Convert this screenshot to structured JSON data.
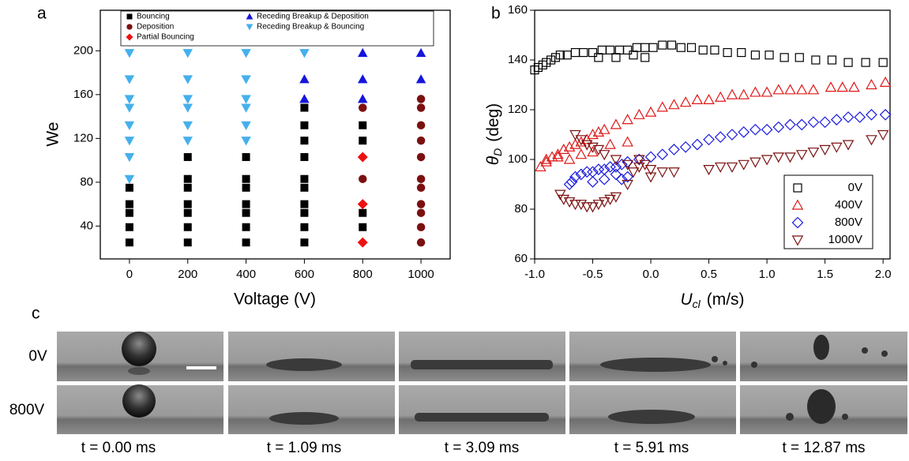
{
  "chart_data": [
    {
      "type": "scatter",
      "panel_label": "a",
      "xlabel": "Voltage (V)",
      "ylabel": "We",
      "xlim": [
        -100,
        1100
      ],
      "xticks": [
        0,
        200,
        400,
        600,
        800,
        1000
      ],
      "ylim": [
        10,
        237
      ],
      "yticks": [
        40,
        80,
        120,
        160,
        200
      ],
      "series": [
        {
          "name": "Bouncing",
          "color": "#000000",
          "marker": "square",
          "filled": true,
          "x": [
            0,
            0,
            0,
            0,
            0,
            200,
            200,
            200,
            200,
            200,
            200,
            200,
            400,
            400,
            400,
            400,
            400,
            400,
            400,
            600,
            600,
            600,
            600,
            600,
            600,
            600,
            600,
            600,
            600,
            800,
            800,
            800,
            800
          ],
          "values": [
            25,
            39,
            52,
            60,
            75,
            25,
            39,
            52,
            60,
            75,
            83,
            103,
            25,
            39,
            52,
            60,
            75,
            83,
            103,
            25,
            39,
            52,
            60,
            75,
            83,
            103,
            118,
            132,
            148,
            39,
            52,
            118,
            132
          ]
        },
        {
          "name": "Deposition",
          "color": "#7b1010",
          "marker": "circle",
          "filled": true,
          "x": [
            800,
            800,
            1000,
            1000,
            1000,
            1000,
            1000,
            1000,
            1000,
            1000,
            1000,
            1000,
            1000
          ],
          "values": [
            83,
            148,
            25,
            39,
            52,
            60,
            75,
            83,
            103,
            118,
            132,
            148,
            156
          ]
        },
        {
          "name": "Partial Bouncing",
          "color": "#ee1111",
          "marker": "diamond",
          "filled": true,
          "x": [
            800,
            800,
            800
          ],
          "values": [
            25,
            60,
            103
          ]
        },
        {
          "name": "Receding Breakup & Deposition",
          "color": "#1515dd",
          "marker": "triangle-up",
          "filled": true,
          "x": [
            600,
            600,
            800,
            800,
            800,
            1000,
            1000
          ],
          "values": [
            156,
            174,
            156,
            174,
            198,
            174,
            198
          ]
        },
        {
          "name": "Receding Breakup & Bouncing",
          "color": "#45b0ec",
          "marker": "triangle-down",
          "filled": true,
          "x": [
            0,
            0,
            0,
            0,
            0,
            0,
            0,
            0,
            200,
            200,
            200,
            200,
            200,
            200,
            400,
            400,
            400,
            400,
            400,
            400,
            600
          ],
          "values": [
            83,
            103,
            118,
            132,
            148,
            156,
            174,
            198,
            118,
            132,
            148,
            156,
            174,
            198,
            118,
            132,
            148,
            156,
            174,
            198,
            198
          ]
        }
      ]
    },
    {
      "type": "scatter",
      "panel_label": "b",
      "xlabel": {
        "symbol": "U",
        "sub": "cl",
        "unit": "(m/s)"
      },
      "ylabel": {
        "symbol": "θ",
        "sub": "D",
        "unit": "(deg)"
      },
      "xlim": [
        -1.0,
        2.06
      ],
      "xticks": [
        {
          "value": -1,
          "label": "-1.0"
        },
        -0.5,
        {
          "value": 0,
          "label": "0.0"
        },
        0.5,
        {
          "value": 1,
          "label": "1.0"
        },
        1.5,
        {
          "value": 2,
          "label": "2.0"
        }
      ],
      "ylim": [
        60,
        160
      ],
      "yticks": [
        60,
        80,
        100,
        120,
        140,
        160
      ],
      "legend": "lower right",
      "series": [
        {
          "name": "0V",
          "color": "#000000",
          "marker": "square",
          "filled": false,
          "x": [
            -1.0,
            -0.97,
            -0.93,
            -0.9,
            -0.86,
            -0.82,
            -0.78,
            -0.72,
            -0.65,
            -0.58,
            -0.5,
            -0.42,
            -0.35,
            -0.27,
            -0.2,
            -0.12,
            -0.05,
            0.02,
            0.1,
            0.18,
            0.26,
            0.35,
            0.45,
            0.55,
            0.66,
            0.78,
            0.9,
            1.02,
            1.15,
            1.28,
            1.42,
            1.56,
            1.7,
            1.85,
            2.0,
            -0.45,
            -0.3,
            -0.15,
            -0.05
          ],
          "values": [
            136,
            137,
            138,
            139,
            140,
            141,
            142,
            142,
            143,
            143,
            143,
            144,
            144,
            144,
            144,
            145,
            145,
            145,
            146,
            146,
            145,
            145,
            144,
            144,
            143,
            143,
            142,
            142,
            141,
            141,
            140,
            140,
            139,
            139,
            139,
            141,
            141,
            142,
            141
          ]
        },
        {
          "name": "400V",
          "color": "#e01818",
          "marker": "triangle-up",
          "filled": false,
          "x": [
            -0.95,
            -0.9,
            -0.85,
            -0.8,
            -0.75,
            -0.7,
            -0.65,
            -0.6,
            -0.55,
            -0.5,
            -0.45,
            -0.4,
            -0.3,
            -0.2,
            -0.1,
            0.0,
            0.1,
            0.2,
            0.3,
            0.4,
            0.5,
            0.6,
            0.7,
            0.8,
            0.9,
            1.0,
            1.1,
            1.2,
            1.3,
            1.4,
            1.55,
            1.65,
            1.75,
            1.9,
            2.02,
            -0.9,
            -0.8,
            -0.7,
            -0.6,
            -0.5,
            -0.35,
            -0.2
          ],
          "values": [
            97,
            99,
            101,
            102,
            104,
            105,
            106,
            107,
            108,
            110,
            111,
            112,
            114,
            116,
            118,
            119,
            121,
            122,
            123,
            124,
            124,
            125,
            126,
            126,
            127,
            127,
            128,
            128,
            128,
            128,
            129,
            129,
            129,
            130,
            131,
            100,
            101,
            100,
            102,
            103,
            106,
            107
          ]
        },
        {
          "name": "800V",
          "color": "#1a1ae0",
          "marker": "diamond",
          "filled": false,
          "x": [
            -0.7,
            -0.68,
            -0.65,
            -0.6,
            -0.55,
            -0.5,
            -0.45,
            -0.4,
            -0.35,
            -0.3,
            -0.25,
            -0.2,
            -0.1,
            0.0,
            0.1,
            0.2,
            0.3,
            0.4,
            0.5,
            0.6,
            0.7,
            0.8,
            0.9,
            1.0,
            1.1,
            1.2,
            1.3,
            1.4,
            1.5,
            1.6,
            1.7,
            1.8,
            1.9,
            2.02,
            -0.5,
            -0.4,
            -0.3,
            -0.25,
            -0.2
          ],
          "values": [
            90,
            91,
            93,
            94,
            95,
            95,
            96,
            96,
            97,
            97,
            98,
            99,
            100,
            101,
            102,
            104,
            105,
            106,
            108,
            109,
            110,
            111,
            112,
            112,
            113,
            114,
            114,
            115,
            115,
            116,
            117,
            117,
            118,
            118,
            91,
            92,
            94,
            92,
            93
          ]
        },
        {
          "name": "1000V",
          "color": "#7b1010",
          "marker": "triangle-down",
          "filled": false,
          "x": [
            -0.78,
            -0.75,
            -0.7,
            -0.65,
            -0.6,
            -0.55,
            -0.5,
            -0.45,
            -0.4,
            -0.35,
            -0.3,
            -0.65,
            -0.6,
            -0.55,
            -0.5,
            -0.45,
            -0.4,
            -0.3,
            -0.2,
            -0.1,
            0.0,
            0.1,
            0.2,
            -0.2,
            -0.15,
            -0.1,
            -0.05,
            0.0,
            0.5,
            0.6,
            0.7,
            0.8,
            0.9,
            1.0,
            1.1,
            1.2,
            1.3,
            1.4,
            1.5,
            1.6,
            1.7,
            1.9,
            2.0
          ],
          "values": [
            86,
            84,
            83,
            82,
            82,
            81,
            81,
            82,
            83,
            84,
            85,
            110,
            108,
            106,
            105,
            104,
            102,
            100,
            98,
            97,
            96,
            95,
            95,
            90,
            95,
            100,
            98,
            93,
            96,
            97,
            97,
            98,
            99,
            100,
            101,
            101,
            102,
            103,
            104,
            105,
            106,
            108,
            110
          ]
        }
      ]
    }
  ],
  "panel_c": {
    "label": "c",
    "rows": [
      "0V",
      "800V"
    ],
    "times": [
      "t = 0.00 ms",
      "t = 1.09 ms",
      "t = 3.09 ms",
      "t = 5.91 ms",
      "t = 12.87 ms"
    ]
  }
}
